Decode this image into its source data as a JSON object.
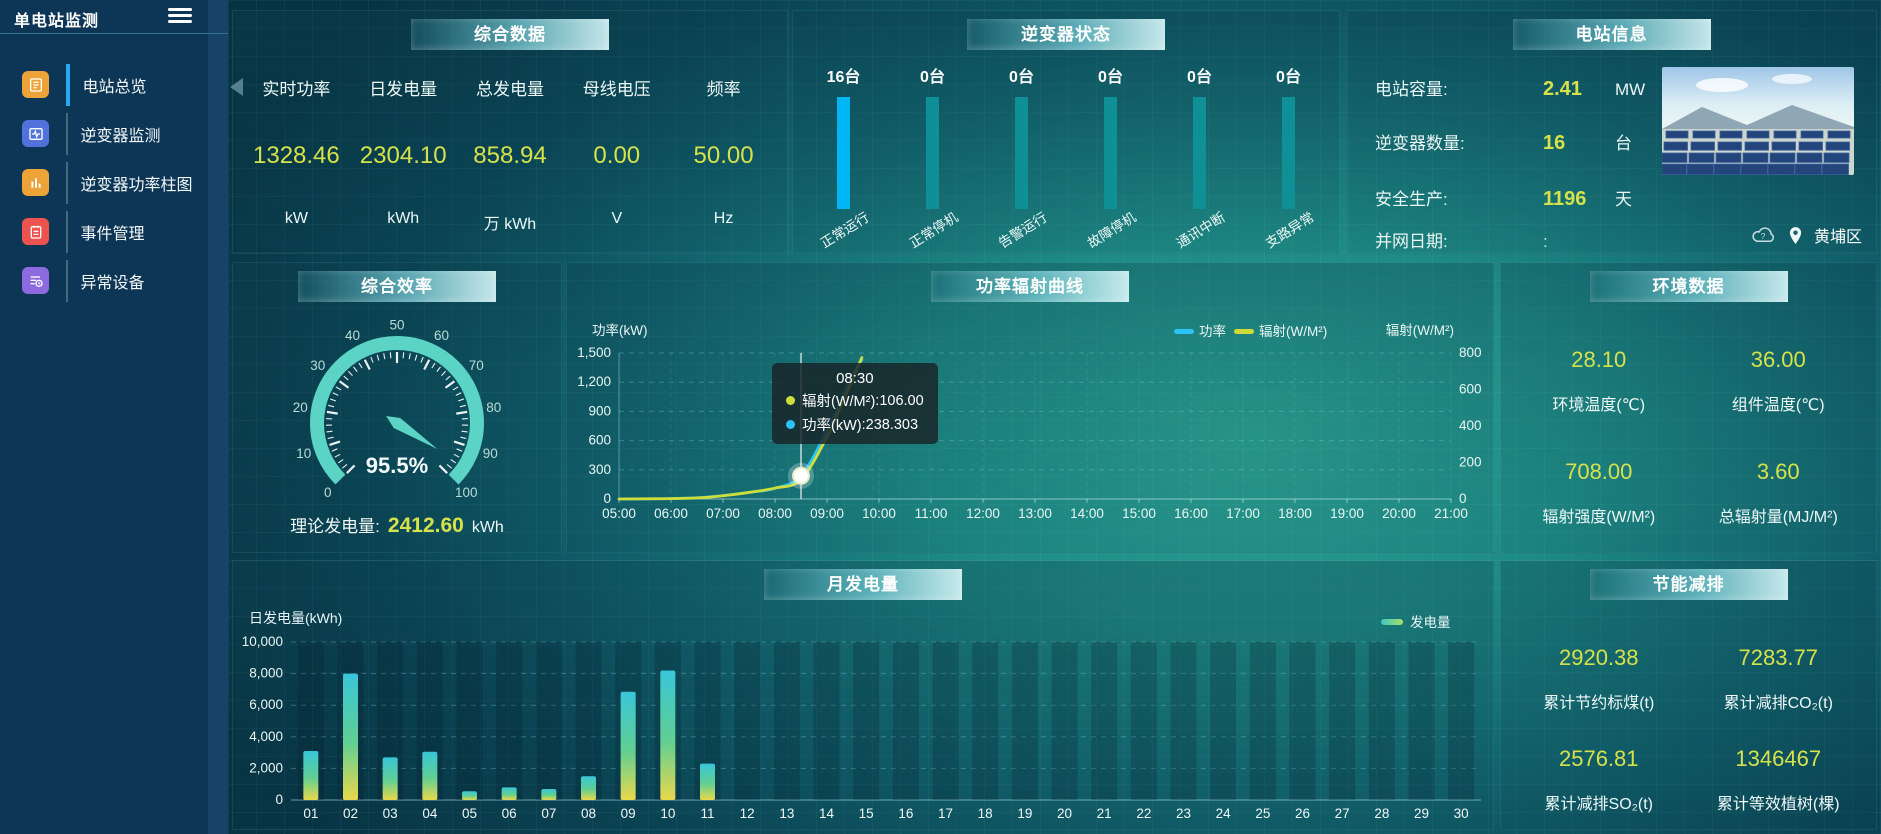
{
  "app": {
    "title": "单电站监测"
  },
  "sidebar": {
    "items": [
      {
        "label": "电站总览",
        "icon": "overview-icon",
        "color": "#eda338",
        "active": true
      },
      {
        "label": "逆变器监测",
        "icon": "inverter-monitor-icon",
        "color": "#5272db",
        "active": false
      },
      {
        "label": "逆变器功率柱图",
        "icon": "inverter-power-bars-icon",
        "color": "#eda338",
        "active": false
      },
      {
        "label": "事件管理",
        "icon": "event-management-icon",
        "color": "#ef5350",
        "active": false
      },
      {
        "label": "异常设备",
        "icon": "abnormal-device-icon",
        "color": "#8e6ae0",
        "active": false
      }
    ]
  },
  "summary": {
    "title": "综合数据",
    "metrics": [
      {
        "label": "实时功率",
        "value": "1328.46",
        "unit": "kW"
      },
      {
        "label": "日发电量",
        "value": "2304.10",
        "unit": "kWh"
      },
      {
        "label": "总发电量",
        "value": "858.94",
        "unit": "万 kWh"
      },
      {
        "label": "母线电压",
        "value": "0.00",
        "unit": "V"
      },
      {
        "label": "频率",
        "value": "50.00",
        "unit": "Hz"
      }
    ]
  },
  "inverter_status": {
    "title": "逆变器状态",
    "items": [
      {
        "count": "16台",
        "label": "正常运行",
        "bar_color": "#00b6f5"
      },
      {
        "count": "0台",
        "label": "正常停机",
        "bar_color": "#0f9096"
      },
      {
        "count": "0台",
        "label": "告警运行",
        "bar_color": "#0f9096"
      },
      {
        "count": "0台",
        "label": "故障停机",
        "bar_color": "#0f9096"
      },
      {
        "count": "0台",
        "label": "通讯中断",
        "bar_color": "#0f9096"
      },
      {
        "count": "0台",
        "label": "支路异常",
        "bar_color": "#0f9096"
      }
    ]
  },
  "station_info": {
    "title": "电站信息",
    "rows": [
      {
        "label": "电站容量:",
        "value": "2.41",
        "unit": "MW",
        "muted": false
      },
      {
        "label": "逆变器数量:",
        "value": "16",
        "unit": "台",
        "muted": false
      },
      {
        "label": "安全生产:",
        "value": "1196",
        "unit": "天",
        "muted": false
      },
      {
        "label": "并网日期: ",
        "value": ":",
        "unit": "",
        "muted": true
      }
    ],
    "location": "黄埔区"
  },
  "efficiency": {
    "title": "综合效率",
    "value_label": "95.5%",
    "footer_label": "理论发电量:",
    "footer_value": "2412.60",
    "footer_unit": "kWh"
  },
  "environment": {
    "title": "环境数据",
    "cells": [
      {
        "value": "28.10",
        "label": "环境温度(℃)"
      },
      {
        "value": "36.00",
        "label": "组件温度(℃)"
      },
      {
        "value": "708.00",
        "label": "辐射强度(W/M²)"
      },
      {
        "value": "3.60",
        "label": "总辐射量(MJ/M²)"
      }
    ]
  },
  "energy_saving": {
    "title": "节能减排",
    "cells": [
      {
        "value": "2920.38",
        "label": "累计节约标煤(t)"
      },
      {
        "value": "7283.77",
        "label": "累计减排CO₂(t)"
      },
      {
        "value": "2576.81",
        "label": "累计减排SO₂(t)"
      },
      {
        "value": "1346467",
        "label": "累计等效植树(棵)"
      }
    ]
  },
  "chart_data": [
    {
      "id": "power_radiation",
      "type": "line",
      "title": "功率辐射曲线",
      "ylabel_left": "功率(kW)",
      "ylabel_right": "辐射(W/M²)",
      "ylim_left": [
        0,
        1500
      ],
      "ylim_right": [
        0,
        800
      ],
      "y_ticks_left": [
        0,
        300,
        600,
        900,
        1200,
        1500
      ],
      "y_ticks_right": [
        0,
        200,
        400,
        600,
        800
      ],
      "x_ticks": [
        "05:00",
        "06:00",
        "07:00",
        "08:00",
        "09:00",
        "10:00",
        "11:00",
        "12:00",
        "13:00",
        "14:00",
        "15:00",
        "16:00",
        "17:00",
        "18:00",
        "19:00",
        "20:00",
        "21:00"
      ],
      "x_range_hours": [
        5,
        21
      ],
      "grid": true,
      "legend": [
        {
          "name": "功率",
          "color": "#2cc3f7"
        },
        {
          "name": "辐射(W/M²)",
          "color": "#cfdd3a"
        }
      ],
      "series": [
        {
          "name": "功率",
          "axis": "left",
          "color": "#2cc3f7",
          "points": [
            [
              5,
              0
            ],
            [
              5.5,
              1
            ],
            [
              6,
              4
            ],
            [
              6.5,
              12
            ],
            [
              7,
              35
            ],
            [
              7.5,
              68
            ],
            [
              8,
              110
            ],
            [
              8.5,
              238.303
            ],
            [
              9,
              700
            ],
            [
              9.25,
              980
            ],
            [
              9.5,
              1280
            ],
            [
              9.67,
              1430
            ]
          ]
        },
        {
          "name": "辐射(W/M²)",
          "axis": "right",
          "color": "#cfdd3a",
          "points": [
            [
              5,
              0
            ],
            [
              5.5,
              1
            ],
            [
              6,
              2
            ],
            [
              6.5,
              6
            ],
            [
              7,
              18
            ],
            [
              7.5,
              36
            ],
            [
              8,
              60
            ],
            [
              8.5,
              106
            ],
            [
              9,
              340
            ],
            [
              9.25,
              500
            ],
            [
              9.5,
              660
            ],
            [
              9.67,
              775
            ]
          ]
        }
      ],
      "marker": {
        "x": 8.5,
        "series": "功率"
      },
      "tooltip": {
        "time": "08:30",
        "rows": [
          {
            "name": "辐射(W/M²)",
            "value": "106.00",
            "color": "#cfdd3a"
          },
          {
            "name": "功率(kW)",
            "value": "238.303",
            "color": "#2cc3f7"
          }
        ]
      }
    },
    {
      "id": "monthly_generation",
      "type": "bar",
      "title": "月发电量",
      "ylabel": "日发电量(kWh)",
      "ylim": [
        0,
        10000
      ],
      "y_ticks": [
        0,
        2000,
        4000,
        6000,
        8000,
        10000
      ],
      "categories": [
        "01",
        "02",
        "03",
        "04",
        "05",
        "06",
        "07",
        "08",
        "09",
        "10",
        "11",
        "12",
        "13",
        "14",
        "15",
        "16",
        "17",
        "18",
        "19",
        "20",
        "21",
        "22",
        "23",
        "24",
        "25",
        "26",
        "27",
        "28",
        "29",
        "30"
      ],
      "values": [
        3100,
        8000,
        2700,
        3050,
        550,
        800,
        700,
        1500,
        6850,
        8200,
        2300,
        0,
        0,
        0,
        0,
        0,
        0,
        0,
        0,
        0,
        0,
        0,
        0,
        0,
        0,
        0,
        0,
        0,
        0,
        0
      ],
      "legend": [
        {
          "name": "发电量"
        }
      ],
      "bar_gradient": {
        "top": "#38c6d8",
        "mid": "#62cf92",
        "bottom": "#e9d84c"
      }
    },
    {
      "id": "efficiency_gauge",
      "type": "gauge",
      "title": "综合效率",
      "min": 0,
      "max": 100,
      "value": 95.5,
      "tick_step": 10,
      "arc_color": "#5bd3c5"
    }
  ],
  "colors": {
    "accent_value": "#d6e24a",
    "sidebar_bg": "#0d3555",
    "active_item": "#2aa7f2",
    "normal_bar": "#00b6f5",
    "idle_bar": "#0f9096"
  }
}
